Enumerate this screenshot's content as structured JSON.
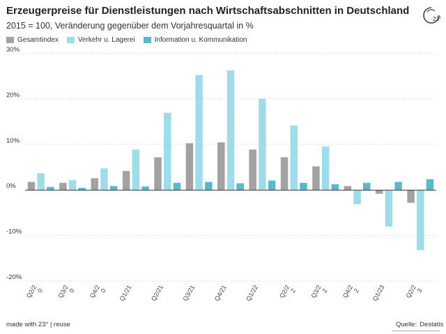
{
  "header": {
    "title": "Erzeugerpreise für Dienstleistungen nach Wirtschaftsabschnitten in Deutschland",
    "subtitle": "2015 = 100, Veränderung gegenüber dem Vorjahresquartal in %"
  },
  "logo": {
    "text": "23°",
    "icon": "23-degrees-logo-icon"
  },
  "footer": {
    "made_with": "made with 23° | reuse",
    "source_label": "Quelle:",
    "source_value": "Destatis"
  },
  "colors": {
    "Gesamtindex": "#a2a2a2",
    "Verkehr u. Lagerei": "#9fdcea",
    "Information u. Kommunikation": "#58b8cc",
    "grid": "#d8d8d8",
    "zero": "#333333"
  },
  "chart_data": {
    "type": "bar",
    "title": "Erzeugerpreise für Dienstleistungen nach Wirtschaftsabschnitten in Deutschland",
    "subtitle": "2015 = 100, Veränderung gegenüber dem Vorjahresquartal in %",
    "xlabel": "",
    "ylabel": "",
    "ylim": [
      -20,
      30
    ],
    "yticks": [
      -20,
      -10,
      0,
      10,
      20,
      30
    ],
    "ytick_labels": [
      "-20%",
      "-10%",
      "0%",
      "10%",
      "20%",
      "30%"
    ],
    "grid": true,
    "legend": "top-left",
    "categories": [
      "Q2/20",
      "Q3/20",
      "Q4/20",
      "Q1/21",
      "Q2/21",
      "Q3/21",
      "Q4/21",
      "Q1/22",
      "Q2/22",
      "Q3/22",
      "Q4/22",
      "Q1/23",
      "Q2/23"
    ],
    "category_labels": [
      [
        "Q2/2",
        "0"
      ],
      [
        "Q3/2",
        "0"
      ],
      [
        "Q4/2",
        "0"
      ],
      [
        "Q1/21"
      ],
      [
        "Q2/21"
      ],
      [
        "Q3/21"
      ],
      [
        "Q4/21"
      ],
      [
        "Q1/22"
      ],
      [
        "Q2/2",
        "2"
      ],
      [
        "Q3/2",
        "2"
      ],
      [
        "Q4/2",
        "2"
      ],
      [
        "Q1/23"
      ],
      [
        "Q2/2",
        "3"
      ]
    ],
    "series": [
      {
        "name": "Gesamtindex",
        "values": [
          1.8,
          1.6,
          2.6,
          4.2,
          7.2,
          10.3,
          10.5,
          8.9,
          7.2,
          5.2,
          0.9,
          -0.8,
          -2.8
        ]
      },
      {
        "name": "Verkehr u. Lagerei",
        "values": [
          3.7,
          2.2,
          4.8,
          8.9,
          17.0,
          25.3,
          26.3,
          20.1,
          14.2,
          9.6,
          -3.1,
          -8.0,
          -13.2
        ]
      },
      {
        "name": "Information u. Kommunikation",
        "values": [
          0.7,
          0.5,
          0.9,
          0.8,
          1.6,
          1.8,
          1.5,
          2.1,
          1.6,
          1.3,
          1.6,
          1.8,
          2.4
        ]
      }
    ]
  }
}
